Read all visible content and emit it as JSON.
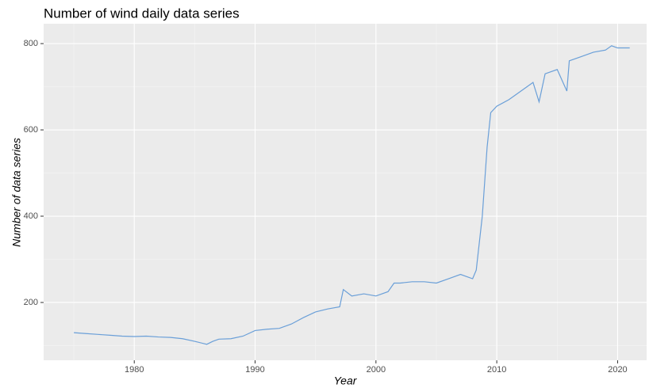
{
  "chart_data": {
    "type": "line",
    "title": "Number of wind daily data series",
    "x_label": "Year",
    "y_label": "Number of data series",
    "x": [
      1975,
      1976,
      1977,
      1978,
      1979,
      1980,
      1981,
      1982,
      1983,
      1984,
      1985,
      1986,
      1986.5,
      1987,
      1988,
      1989,
      1990,
      1991,
      1992,
      1993,
      1994,
      1995,
      1996,
      1997,
      1997.3,
      1998,
      1999,
      2000,
      2001,
      2001.5,
      2002,
      2003,
      2004,
      2005,
      2006,
      2007,
      2008,
      2008.3,
      2008.8,
      2009.2,
      2009.5,
      2010,
      2011,
      2012,
      2013,
      2013.5,
      2014,
      2015,
      2015.8,
      2016,
      2017,
      2018,
      2019,
      2019.5,
      2020,
      2021
    ],
    "values": [
      130,
      128,
      126,
      124,
      122,
      121,
      122,
      120,
      119,
      116,
      110,
      103,
      110,
      115,
      116,
      122,
      135,
      138,
      140,
      150,
      165,
      178,
      185,
      190,
      230,
      215,
      220,
      215,
      225,
      245,
      245,
      248,
      248,
      245,
      255,
      265,
      255,
      275,
      400,
      560,
      640,
      655,
      670,
      690,
      710,
      665,
      730,
      740,
      690,
      760,
      770,
      780,
      785,
      795,
      790,
      790
    ],
    "color": "#6a9fd8",
    "xlim": [
      1972.5,
      2022.4
    ],
    "ylim": [
      66,
      846
    ],
    "xticks": [
      1980,
      1990,
      2000,
      2010,
      2020
    ],
    "yticks": [
      200,
      400,
      600,
      800
    ],
    "x_minor_ticks": [
      1975,
      1985,
      1995,
      2005,
      2015
    ],
    "y_minor_ticks": [
      100,
      300,
      500,
      700
    ],
    "grid": true
  }
}
